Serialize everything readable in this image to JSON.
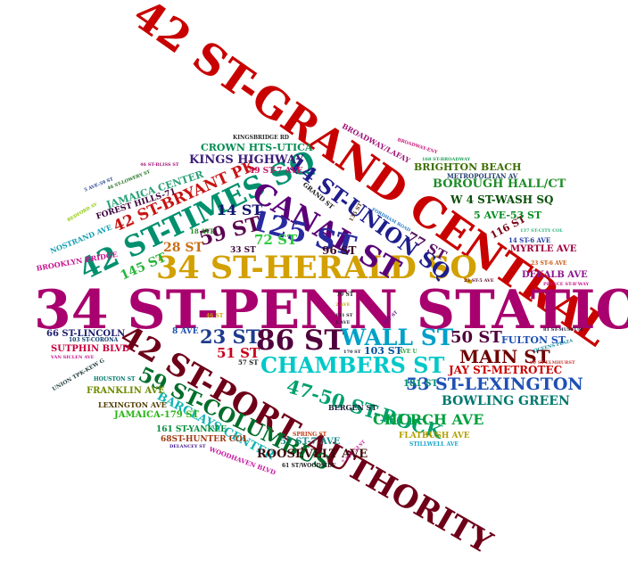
{
  "words": [
    {
      "text": "42 ST-GRAND CENTRAL",
      "color": "#c80000"
    },
    {
      "text": "34 ST-PENN STATION",
      "color": "#a8006e"
    },
    {
      "text": "42 ST-PORT AUTHORITY",
      "color": "#6e0018"
    },
    {
      "text": "34 ST-HERALD SQ",
      "color": "#d2a000"
    },
    {
      "text": "42 ST-TIMES SQ",
      "color": "#00906e"
    },
    {
      "text": "CANAL ST",
      "color": "#5a0078"
    },
    {
      "text": "125 ST",
      "color": "#2a2aa0"
    },
    {
      "text": "14 ST-UNION SQ",
      "color": "#1e1e8c"
    },
    {
      "text": "59 ST-COLUMBUS",
      "color": "#006e2a"
    },
    {
      "text": "86 ST",
      "color": "#50003c"
    },
    {
      "text": "WALL ST",
      "color": "#00a0c8"
    },
    {
      "text": "CHAMBERS ST",
      "color": "#00c8c8"
    },
    {
      "text": "47-50 ST-ROCK",
      "color": "#00a06e"
    },
    {
      "text": "42 ST-BRYANT PK",
      "color": "#c81414"
    },
    {
      "text": "53 ST-LEXINGTON",
      "color": "#1e50b4"
    },
    {
      "text": "MAIN ST",
      "color": "#6e0000"
    },
    {
      "text": "BOWLING GREEN",
      "color": "#00786e"
    },
    {
      "text": "CHURCH AVE",
      "color": "#00a03c"
    },
    {
      "text": "BARCLAYS CENTER",
      "color": "#14b4b4"
    },
    {
      "text": "KINGS HIGHWAY",
      "color": "#3c1e78"
    },
    {
      "text": "BOROUGH HALL/CT",
      "color": "#1e8c28"
    },
    {
      "text": "W 4 ST-WASH SQ",
      "color": "#0a500a"
    },
    {
      "text": "ROOSEVELT AVE",
      "color": "#3c0a0a"
    },
    {
      "text": "FULTON ST",
      "color": "#1e50b4"
    },
    {
      "text": "JAY ST-METROTEC",
      "color": "#c80000"
    },
    {
      "text": "CROWN HTS-UTICA",
      "color": "#008c50"
    },
    {
      "text": "BRIGHTON BEACH",
      "color": "#3c6e00"
    },
    {
      "text": "JAMAICA CENTER",
      "color": "#28a078"
    },
    {
      "text": "FOREST HILLS-71",
      "color": "#3c003c"
    },
    {
      "text": "14 ST",
      "color": "#14146e"
    },
    {
      "text": "59 ST",
      "color": "#5a0050"
    },
    {
      "text": "51 ST",
      "color": "#c8001e"
    },
    {
      "text": "23 ST",
      "color": "#1e3c8c"
    },
    {
      "text": "145 ST",
      "color": "#28b43c"
    },
    {
      "text": "72 ST",
      "color": "#28c83c"
    },
    {
      "text": "28 ST",
      "color": "#c86e14"
    },
    {
      "text": "50 ST",
      "color": "#50003c"
    },
    {
      "text": "96 ST",
      "color": "#3c0a28"
    },
    {
      "text": "77 ST",
      "color": "#5a1464"
    },
    {
      "text": "116 ST",
      "color": "#780014"
    },
    {
      "text": "181 ST",
      "color": "#008c6e"
    },
    {
      "text": "103 ST",
      "color": "#0050a0"
    },
    {
      "text": "5 AVE-53 ST",
      "color": "#008c1e"
    },
    {
      "text": "MYRTLE AVE",
      "color": "#a0003c"
    },
    {
      "text": "DEKALB AVE",
      "color": "#8c148c"
    },
    {
      "text": "66 ST-LINCOLN",
      "color": "#1e1e6e"
    },
    {
      "text": "SUTPHIN BLVD",
      "color": "#c8003c"
    },
    {
      "text": "FRANKLIN AVE",
      "color": "#6e8c00"
    },
    {
      "text": "JAMAICA-179 ST",
      "color": "#28b414"
    },
    {
      "text": "161 ST-YANKEE",
      "color": "#008c3c"
    },
    {
      "text": "68ST-HUNTER COL",
      "color": "#a03c14"
    },
    {
      "text": "57 ST-7 AVE",
      "color": "#1e8c8c"
    },
    {
      "text": "FLATBUSH AVE",
      "color": "#b4a000"
    },
    {
      "text": "LEXINGTON AVE",
      "color": "#503c00"
    },
    {
      "text": "BERGEN ST",
      "color": "#1e1e3c"
    },
    {
      "text": "49 ST-7 AVE",
      "color": "#c81464"
    },
    {
      "text": "NOSTRAND AVE",
      "color": "#14a0b4"
    },
    {
      "text": "BROOKLYN BRIDGE",
      "color": "#c8148c"
    },
    {
      "text": "BROADWAY/LAFAY",
      "color": "#a01478"
    },
    {
      "text": "METROPOLITAN AV",
      "color": "#1e3c6e"
    },
    {
      "text": "KINGSBRIDGE RD",
      "color": "#282828"
    },
    {
      "text": "18 AVE",
      "color": "#1e8c1e"
    },
    {
      "text": "33 ST",
      "color": "#3c0a3c"
    },
    {
      "text": "8 AVE",
      "color": "#1e50b4"
    },
    {
      "text": "57 ST",
      "color": "#1e1e1e"
    },
    {
      "text": "14 ST-6 AVE",
      "color": "#1e3ca0"
    },
    {
      "text": "23 ST-6 AVE",
      "color": "#c85a14"
    },
    {
      "text": "GRAND ST",
      "color": "#141414"
    },
    {
      "text": "135 ST",
      "color": "#5a3c14"
    },
    {
      "text": "HOUSTON ST",
      "color": "#00786e"
    },
    {
      "text": "UNION TPK-KEW G",
      "color": "#1e3c3c"
    },
    {
      "text": "WOODHAVEN BLVD",
      "color": "#c814a0"
    },
    {
      "text": "STILLWELL AVE",
      "color": "#14a0c8"
    },
    {
      "text": "SPRING ST",
      "color": "#c83c14"
    },
    {
      "text": "DELANCEY ST",
      "color": "#3c148c"
    },
    {
      "text": "61 ST/WOODSIDE",
      "color": "#1e1e1e"
    },
    {
      "text": "7 AVE-53 ST",
      "color": "#c8148c"
    },
    {
      "text": "103 ST-CORONA",
      "color": "#0a3c6e"
    },
    {
      "text": "VAN SICLEN AVE",
      "color": "#c8148c"
    },
    {
      "text": "BEDFORD AV",
      "color": "#8cc800"
    },
    {
      "text": "5 AVE-59 ST",
      "color": "#1e3c8c"
    },
    {
      "text": "46 ST-BLISS ST",
      "color": "#a01478"
    },
    {
      "text": "46 ST-LOWERY ST",
      "color": "#1e6e1e"
    },
    {
      "text": "BROADWAY-ENY",
      "color": "#c81478"
    },
    {
      "text": "168 ST-BROADWAY",
      "color": "#1ea05a"
    },
    {
      "text": "FORDHAM ROAD",
      "color": "#1e78c8"
    },
    {
      "text": "137 ST-CITY COL",
      "color": "#28b478"
    },
    {
      "text": "23 ST-5 AVE",
      "color": "#5a0a28"
    },
    {
      "text": "PRINCE ST-B'WAY",
      "color": "#c8148c"
    },
    {
      "text": "81 ST-MUSEUM",
      "color": "#1e1e3c"
    },
    {
      "text": "QUEENS PLAZA",
      "color": "#1e8ca0"
    },
    {
      "text": "90 ST-ELMHURST",
      "color": "#c83c3c"
    },
    {
      "text": "79 ST",
      "color": "#1e1e1e"
    },
    {
      "text": "2 AVE",
      "color": "#c8a014"
    },
    {
      "text": "111 ST",
      "color": "#1e1e1e"
    },
    {
      "text": "1 AVE",
      "color": "#1e1e3c"
    },
    {
      "text": "157 ST",
      "color": "#5a1478"
    },
    {
      "text": "170 ST",
      "color": "#1e1e3c"
    },
    {
      "text": "AVE U",
      "color": "#28a03c"
    },
    {
      "text": "46 ST",
      "color": "#c8a014"
    }
  ]
}
